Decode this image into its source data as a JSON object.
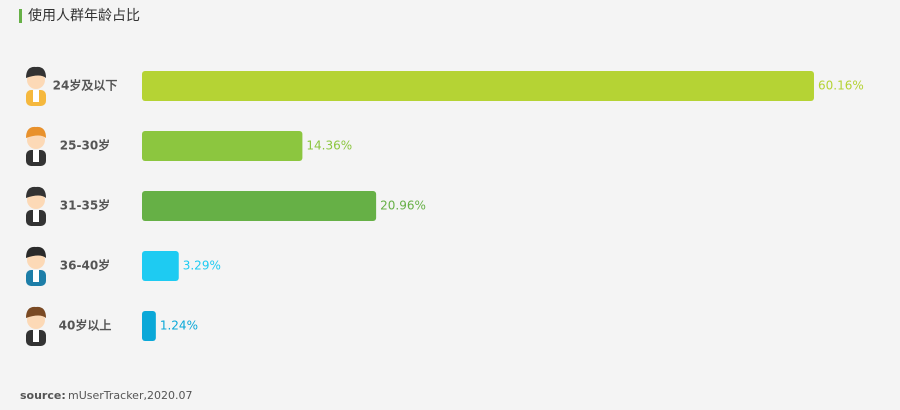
{
  "chart_data": {
    "type": "bar",
    "orientation": "horizontal",
    "title": "使用人群年龄占比",
    "categories": [
      "24岁及以下",
      "25-30岁",
      "31-35岁",
      "36-40岁",
      "40岁以上"
    ],
    "values": [
      60.16,
      14.36,
      20.96,
      3.29,
      1.24
    ],
    "value_labels": [
      "60.16%",
      "14.36%",
      "20.96%",
      "3.29%",
      "1.24%"
    ],
    "colors": [
      "#b5d334",
      "#8cc63f",
      "#66b046",
      "#1ecbf2",
      "#0aa8d8"
    ]
  },
  "source": {
    "label": "source:",
    "text": "mUserTracker,2020.07"
  }
}
